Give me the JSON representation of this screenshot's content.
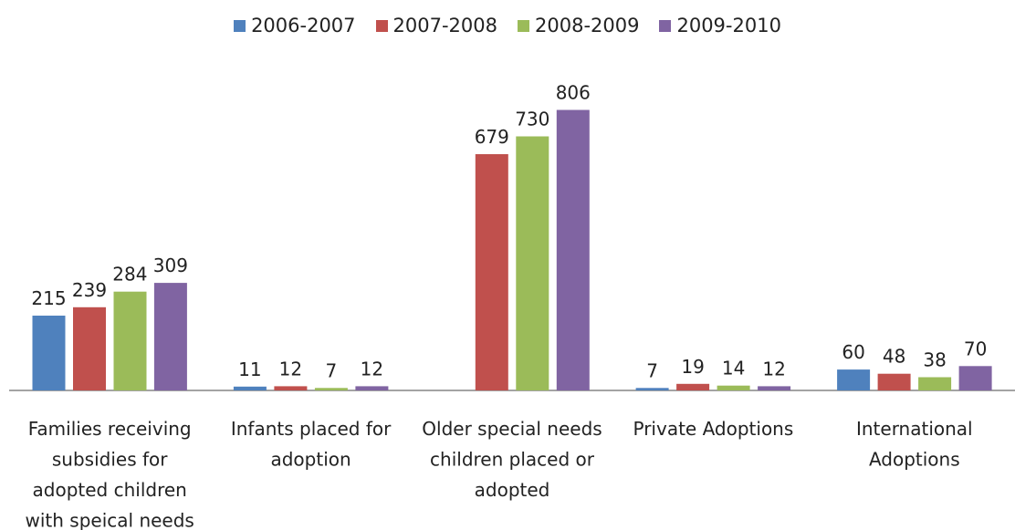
{
  "chart_data": {
    "type": "bar",
    "title": "",
    "xlabel": "",
    "ylabel": "",
    "ylim": [
      0,
      880
    ],
    "grid": false,
    "legend_position": "top",
    "categories": [
      [
        "Families receiving",
        "subsidies for",
        "adopted children",
        "with speical needs"
      ],
      [
        "Infants placed for",
        "adoption"
      ],
      [
        "Older special needs",
        "children placed or",
        "adopted"
      ],
      [
        "Private Adoptions"
      ],
      [
        "International",
        "Adoptions"
      ]
    ],
    "series": [
      {
        "name": "2006-2007",
        "color": "#4F81BD",
        "values": [
          215,
          11,
          null,
          7,
          60
        ]
      },
      {
        "name": "2007-2008",
        "color": "#C0504D",
        "values": [
          239,
          12,
          679,
          19,
          48
        ]
      },
      {
        "name": "2008-2009",
        "color": "#9BBB59",
        "values": [
          284,
          7,
          730,
          14,
          38
        ]
      },
      {
        "name": "2009-2010",
        "color": "#8064A2",
        "values": [
          309,
          12,
          806,
          12,
          70
        ]
      }
    ]
  }
}
